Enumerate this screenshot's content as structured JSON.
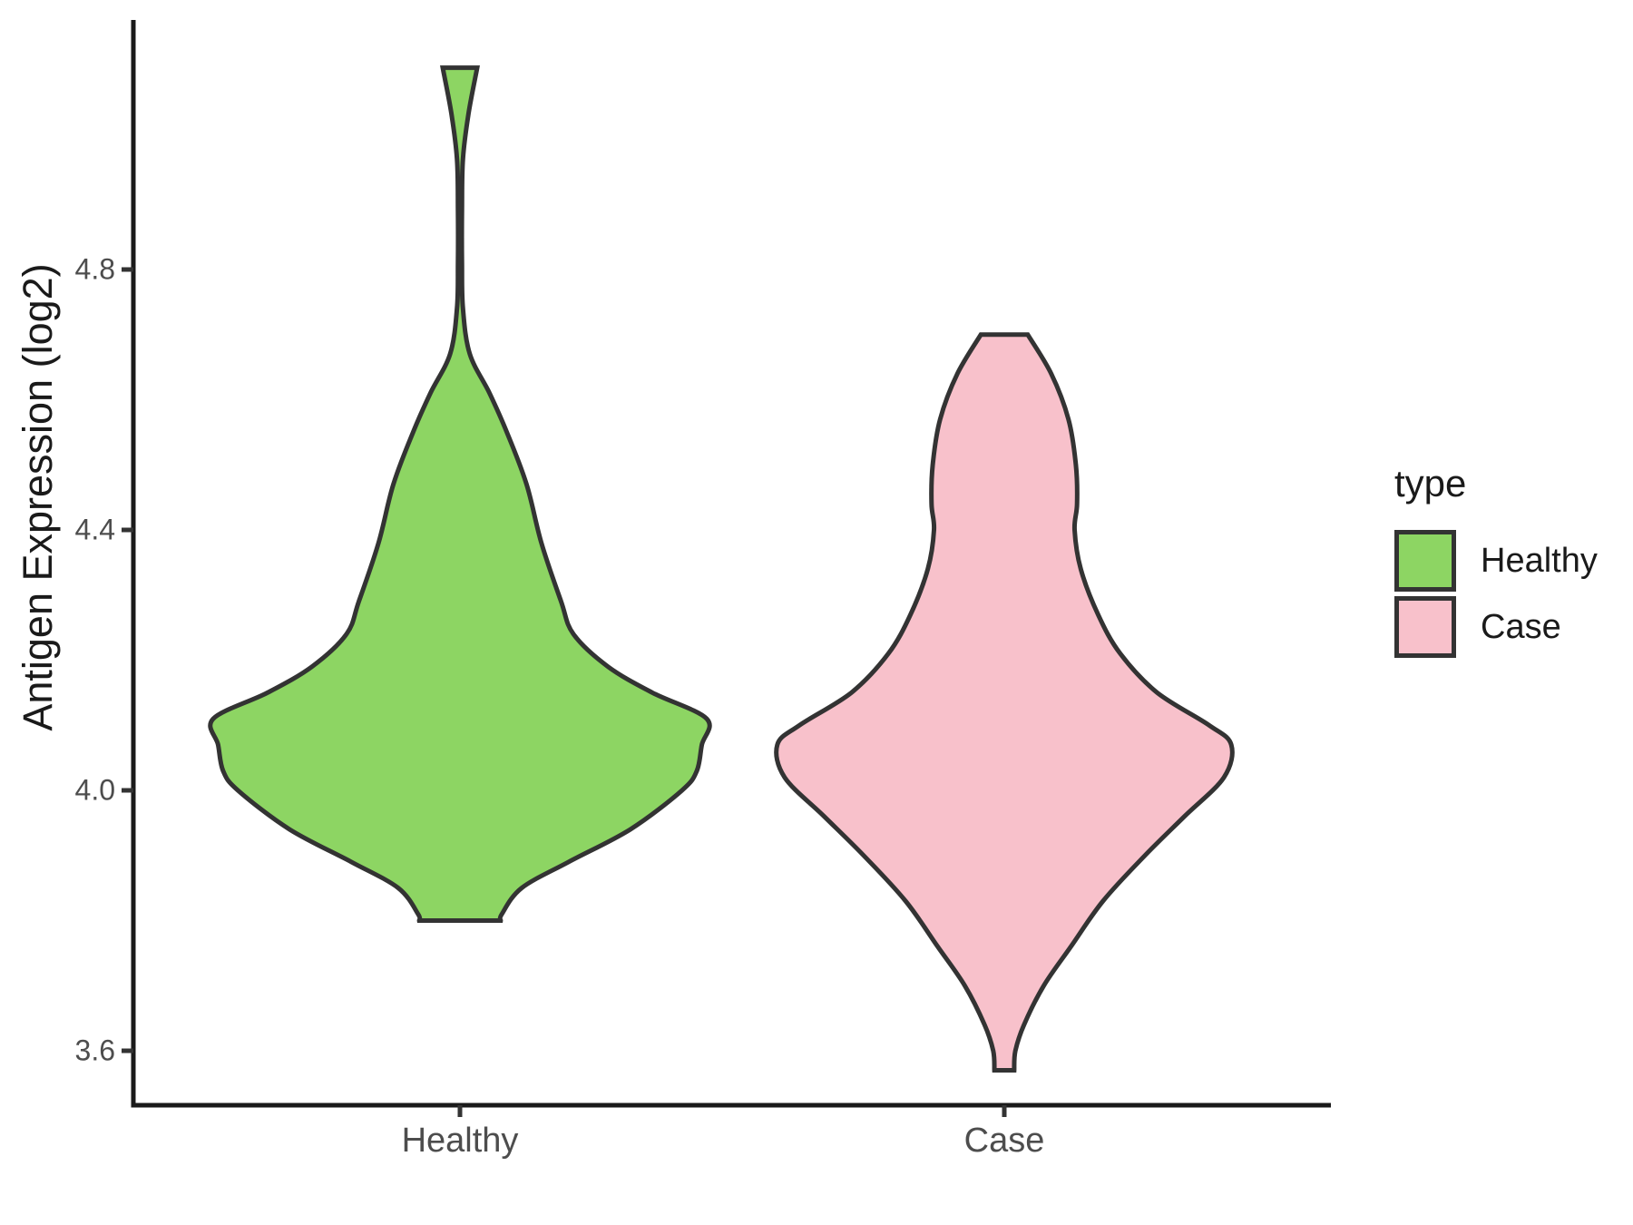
{
  "chart_data": {
    "type": "violin",
    "title": "",
    "grid": false,
    "y_axis": {
      "title": "Antigen Expression (log2)",
      "ticks": [
        4.8,
        4.4,
        4.0,
        3.6
      ],
      "tick_labels": [
        "4.8",
        "4.4",
        "4.0",
        "3.6"
      ],
      "range_shown": [
        3.52,
        5.18
      ]
    },
    "x_axis": {
      "title": "",
      "categories": [
        "Healthy",
        "Case"
      ],
      "category_labels": [
        "Healthy",
        "Case"
      ]
    },
    "legend": {
      "title": "type",
      "position": "right",
      "entries": [
        {
          "label": "Healthy",
          "fill": "#8DD563"
        },
        {
          "label": "Case",
          "fill": "#F8C1CB"
        }
      ]
    },
    "style": {
      "outline_color": "#333333",
      "axis_line_color": "#1A1A1A",
      "tick_mark_color": "#333333",
      "tick_label_color": "#4D4D4D",
      "background": "#FFFFFF"
    },
    "profile_note": "density_profile = [expression_value, relative half-width], 1.0 = widest point of Healthy violin",
    "groups": [
      {
        "name": "Healthy",
        "fill": "#8DD563",
        "summary": {
          "min": 3.8,
          "max": 5.11,
          "widest_at": 4.11
        },
        "density_profile": [
          [
            5.11,
            0.07
          ],
          [
            5.04,
            0.035
          ],
          [
            4.97,
            0.012
          ],
          [
            4.89,
            0.008
          ],
          [
            4.81,
            0.008
          ],
          [
            4.74,
            0.012
          ],
          [
            4.67,
            0.04
          ],
          [
            4.61,
            0.12
          ],
          [
            4.55,
            0.19
          ],
          [
            4.47,
            0.27
          ],
          [
            4.38,
            0.33
          ],
          [
            4.29,
            0.41
          ],
          [
            4.24,
            0.46
          ],
          [
            4.19,
            0.6
          ],
          [
            4.15,
            0.78
          ],
          [
            4.11,
            1.0
          ],
          [
            4.07,
            0.98
          ],
          [
            4.03,
            0.96
          ],
          [
            4.0,
            0.9
          ],
          [
            3.94,
            0.69
          ],
          [
            3.89,
            0.44
          ],
          [
            3.85,
            0.25
          ],
          [
            3.81,
            0.17
          ],
          [
            3.8,
            0.165
          ]
        ]
      },
      {
        "name": "Case",
        "fill": "#F8C1CB",
        "summary": {
          "min": 3.57,
          "max": 4.7,
          "widest_at": 4.07
        },
        "density_profile": [
          [
            4.7,
            0.095
          ],
          [
            4.64,
            0.19
          ],
          [
            4.57,
            0.26
          ],
          [
            4.5,
            0.29
          ],
          [
            4.44,
            0.295
          ],
          [
            4.4,
            0.285
          ],
          [
            4.34,
            0.31
          ],
          [
            4.27,
            0.38
          ],
          [
            4.21,
            0.47
          ],
          [
            4.15,
            0.62
          ],
          [
            4.1,
            0.83
          ],
          [
            4.07,
            0.92
          ],
          [
            4.02,
            0.89
          ],
          [
            3.96,
            0.73
          ],
          [
            3.9,
            0.57
          ],
          [
            3.83,
            0.4
          ],
          [
            3.76,
            0.27
          ],
          [
            3.7,
            0.16
          ],
          [
            3.64,
            0.08
          ],
          [
            3.6,
            0.045
          ],
          [
            3.57,
            0.04
          ]
        ]
      }
    ]
  }
}
